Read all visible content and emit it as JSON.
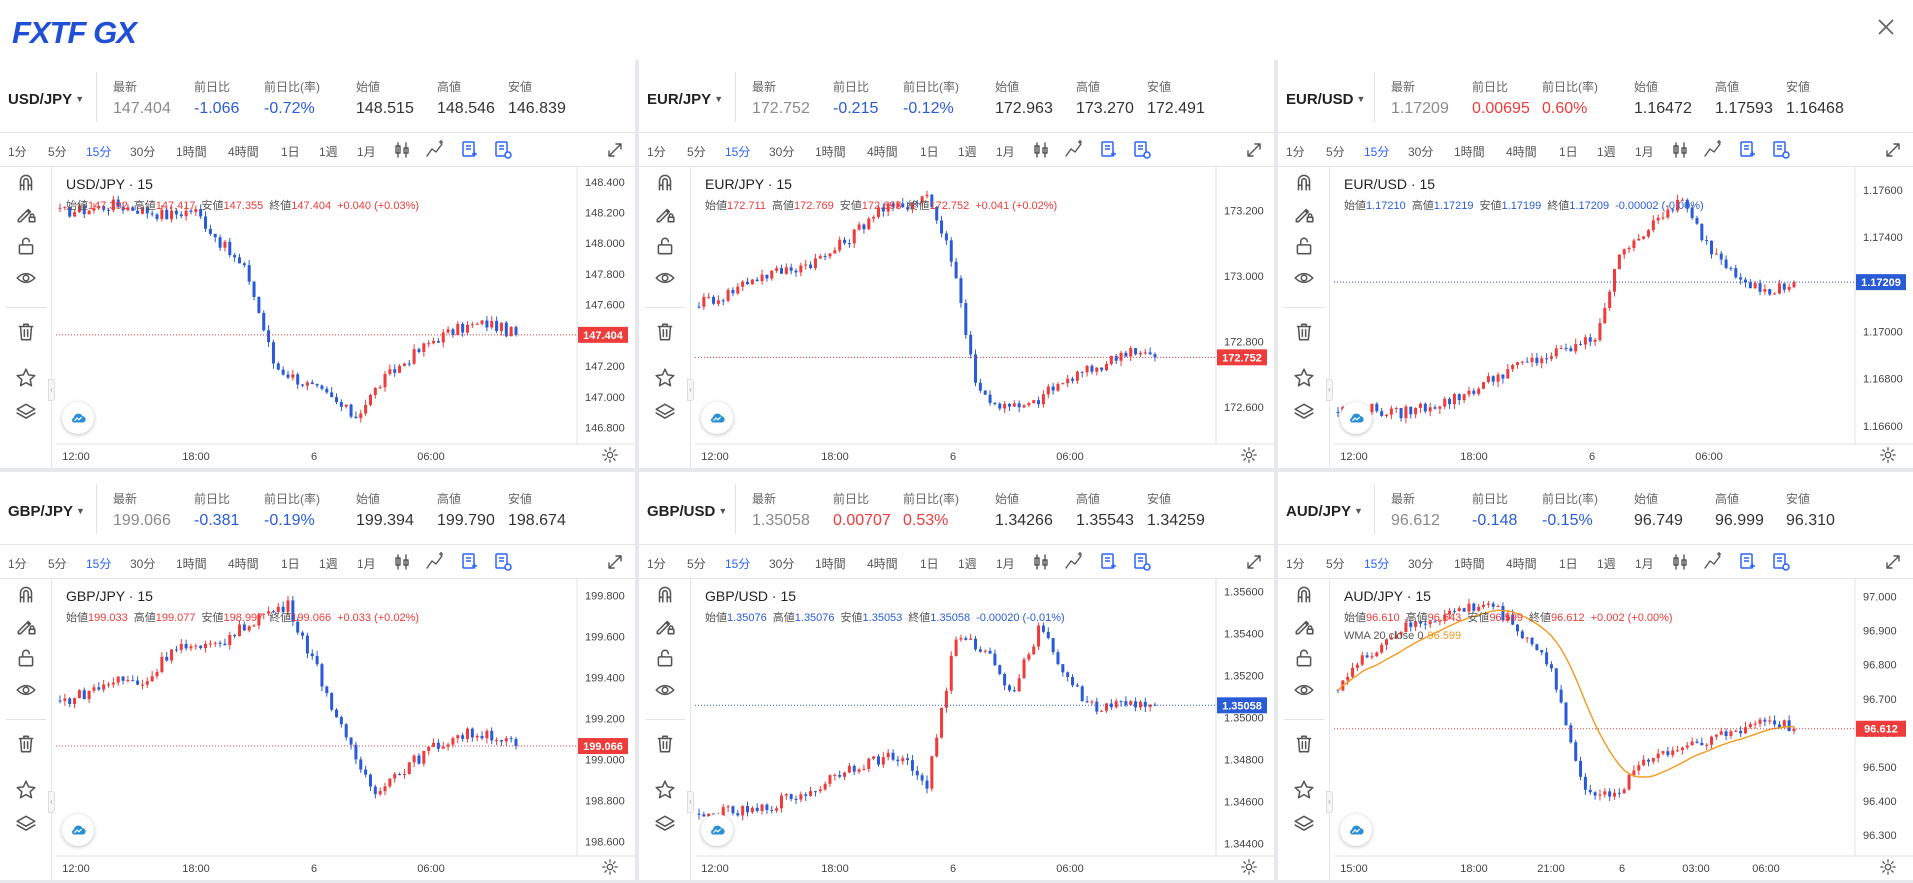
{
  "brand": {
    "logo_text": "FXTF GX",
    "logo_color": "#1f4fd6"
  },
  "icons": {
    "close": "close-icon",
    "expand": "expand-icon",
    "magnet": "magnet-icon",
    "draw": "pencil-lock-icon",
    "lock": "unlock-icon",
    "eye": "eye-icon",
    "trash": "trash-icon",
    "star": "star-icon",
    "layers": "layers-icon",
    "cloud": "cloud-icon",
    "gear": "gear-icon",
    "candle": "candlestick-icon",
    "indicator": "indicator-icon",
    "template": "template-icon"
  },
  "colors": {
    "up": "#ee3b3b",
    "down": "#2a5bd7",
    "accent": "#2962ff",
    "wma": "#f29a1e"
  },
  "labels": {
    "last": "最新",
    "chg": "前日比",
    "chg_pct": "前日比(率)",
    "open": "始値",
    "high": "高値",
    "low": "安値",
    "close": "終値",
    "interval": "· 15"
  },
  "timeframes": [
    "1分",
    "5分",
    "15分",
    "30分",
    "1時間",
    "4時間",
    "1日",
    "1週",
    "1月"
  ],
  "active_timeframe": "15分",
  "panels": [
    {
      "symbol": "USD/JPY",
      "chart_label": "USD/JPY · 15",
      "quote": {
        "last": "147.404",
        "chg": "-1.066",
        "chg_pct": "-0.72%",
        "open": "148.515",
        "high": "148.546",
        "low": "146.839",
        "dir": "down"
      },
      "ohlc": {
        "o": "147.392",
        "h": "147.417",
        "l": "147.355",
        "c": "147.404",
        "change": "+0.040 (+0.03%)",
        "dir": "up"
      },
      "price_tag": "147.404",
      "tag_dir": "up",
      "price_axis": [
        "148.400",
        "148.200",
        "148.000",
        "147.800",
        "147.600",
        "147.400",
        "147.200",
        "147.000",
        "146.800"
      ],
      "time_axis": [
        "12:00",
        "18:00",
        "6",
        "06:00"
      ]
    },
    {
      "symbol": "EUR/JPY",
      "chart_label": "EUR/JPY · 15",
      "quote": {
        "last": "172.752",
        "chg": "-0.215",
        "chg_pct": "-0.12%",
        "open": "172.963",
        "high": "173.270",
        "low": "172.491",
        "dir": "down"
      },
      "ohlc": {
        "o": "172.711",
        "h": "172.769",
        "l": "172.693",
        "c": "172.752",
        "change": "+0.041 (+0.02%)",
        "dir": "up"
      },
      "price_tag": "172.752",
      "tag_dir": "up",
      "price_axis": [
        "173.200",
        "173.000",
        "172.800",
        "172.600"
      ],
      "time_axis": [
        "12:00",
        "18:00",
        "6",
        "06:00"
      ]
    },
    {
      "symbol": "EUR/USD",
      "chart_label": "EUR/USD · 15",
      "quote": {
        "last": "1.17209",
        "chg": "0.00695",
        "chg_pct": "0.60%",
        "open": "1.16472",
        "high": "1.17593",
        "low": "1.16468",
        "dir": "up"
      },
      "ohlc": {
        "o": "1.17210",
        "h": "1.17219",
        "l": "1.17199",
        "c": "1.17209",
        "change": "-0.00002 (-0.00%)",
        "dir": "down"
      },
      "price_tag": "1.17209",
      "tag_dir": "down",
      "price_axis": [
        "1.17600",
        "1.17400",
        "1.17200",
        "1.17000",
        "1.16800",
        "1.16600"
      ],
      "time_axis": [
        "12:00",
        "18:00",
        "6",
        "06:00"
      ]
    },
    {
      "symbol": "GBP/JPY",
      "chart_label": "GBP/JPY · 15",
      "quote": {
        "last": "199.066",
        "chg": "-0.381",
        "chg_pct": "-0.19%",
        "open": "199.394",
        "high": "199.790",
        "low": "198.674",
        "dir": "down"
      },
      "ohlc": {
        "o": "199.033",
        "h": "199.077",
        "l": "198.997",
        "c": "199.066",
        "change": "+0.033 (+0.02%)",
        "dir": "up"
      },
      "price_tag": "199.066",
      "tag_dir": "up",
      "price_axis": [
        "199.800",
        "199.600",
        "199.400",
        "199.200",
        "199.000",
        "198.800",
        "198.600"
      ],
      "time_axis": [
        "12:00",
        "18:00",
        "6",
        "06:00"
      ]
    },
    {
      "symbol": "GBP/USD",
      "chart_label": "GBP/USD · 15",
      "quote": {
        "last": "1.35058",
        "chg": "0.00707",
        "chg_pct": "0.53%",
        "open": "1.34266",
        "high": "1.35543",
        "low": "1.34259",
        "dir": "up"
      },
      "ohlc": {
        "o": "1.35076",
        "h": "1.35076",
        "l": "1.35053",
        "c": "1.35058",
        "change": "-0.00020 (-0.01%)",
        "dir": "down"
      },
      "price_tag": "1.35058",
      "tag_dir": "down",
      "price_axis": [
        "1.35600",
        "1.35400",
        "1.35200",
        "1.35000",
        "1.34800",
        "1.34600",
        "1.34400"
      ],
      "time_axis": [
        "12:00",
        "18:00",
        "6",
        "06:00"
      ]
    },
    {
      "symbol": "AUD/JPY",
      "chart_label": "AUD/JPY · 15",
      "quote": {
        "last": "96.612",
        "chg": "-0.148",
        "chg_pct": "-0.15%",
        "open": "96.749",
        "high": "96.999",
        "low": "96.310",
        "dir": "down"
      },
      "ohlc": {
        "o": "96.610",
        "h": "96.643",
        "l": "96.599",
        "c": "96.612",
        "change": "+0.002 (+0.00%)",
        "dir": "up"
      },
      "wma_label": "WMA 20 close 0",
      "wma_value": "96.599",
      "price_tag": "96.612",
      "tag_dir": "up",
      "price_axis": [
        "97.000",
        "96.900",
        "96.800",
        "96.700",
        "96.600",
        "96.500",
        "96.400",
        "96.300"
      ],
      "time_axis": [
        "15:00",
        "18:00",
        "21:00",
        "6",
        "03:00",
        "06:00"
      ]
    }
  ],
  "chart_data": [
    {
      "type": "candlestick",
      "title": "USD/JPY · 15",
      "ylim": [
        146.72,
        148.47
      ],
      "current": 147.404,
      "y_ticks": [
        148.4,
        148.2,
        148.0,
        147.8,
        147.6,
        147.4,
        147.2,
        147.0,
        146.8
      ],
      "x_ticks": [
        "12:00",
        "18:00",
        "6",
        "06:00"
      ],
      "anchors": [
        148.2,
        148.22,
        148.25,
        148.22,
        148.18,
        148.22,
        148.0,
        147.8,
        147.2,
        147.1,
        147.0,
        146.87,
        147.1,
        147.25,
        147.38,
        147.45,
        147.48,
        147.404
      ],
      "candles": 95
    },
    {
      "type": "candlestick",
      "title": "EUR/JPY · 15",
      "ylim": [
        172.5,
        173.32
      ],
      "current": 172.752,
      "y_ticks": [
        173.2,
        173.0,
        172.8,
        172.6
      ],
      "x_ticks": [
        "12:00",
        "18:00",
        "6",
        "06:00"
      ],
      "anchors": [
        172.92,
        172.94,
        172.99,
        173.01,
        173.03,
        173.06,
        173.12,
        173.2,
        173.21,
        173.25,
        173.05,
        172.65,
        172.6,
        172.6,
        172.66,
        172.7,
        172.73,
        172.78,
        172.752
      ],
      "candles": 95
    },
    {
      "type": "candlestick",
      "title": "EUR/USD · 15",
      "ylim": [
        1.1654,
        1.1768
      ],
      "current": 1.17209,
      "y_ticks": [
        1.176,
        1.174,
        1.172,
        1.17,
        1.168,
        1.166
      ],
      "x_ticks": [
        "12:00",
        "18:00",
        "6",
        "06:00"
      ],
      "anchors": [
        1.16665,
        1.16675,
        1.1665,
        1.1668,
        1.1671,
        1.1677,
        1.1684,
        1.1688,
        1.1692,
        1.1697,
        1.1736,
        1.1744,
        1.1756,
        1.1736,
        1.1725,
        1.1716,
        1.17209
      ],
      "candles": 95
    },
    {
      "type": "candlestick",
      "title": "GBP/JPY · 15",
      "ylim": [
        198.55,
        199.86
      ],
      "current": 199.066,
      "y_ticks": [
        199.8,
        199.6,
        199.4,
        199.2,
        199.0,
        198.8,
        198.6
      ],
      "x_ticks": [
        "12:00",
        "18:00",
        "6",
        "06:00"
      ],
      "anchors": [
        199.28,
        199.33,
        199.39,
        199.37,
        199.56,
        199.53,
        199.6,
        199.7,
        199.75,
        199.45,
        199.1,
        198.85,
        198.95,
        199.05,
        199.12,
        199.13,
        199.066
      ],
      "candles": 95
    },
    {
      "type": "candlestick",
      "title": "GBP/USD · 15",
      "ylim": [
        1.3436,
        1.3564
      ],
      "current": 1.35058,
      "y_ticks": [
        1.356,
        1.354,
        1.352,
        1.35,
        1.348,
        1.346,
        1.344
      ],
      "x_ticks": [
        "12:00",
        "18:00",
        "6",
        "06:00"
      ],
      "anchors": [
        1.3452,
        1.3455,
        1.3455,
        1.3461,
        1.3465,
        1.3475,
        1.3479,
        1.3482,
        1.3468,
        1.3537,
        1.3533,
        1.3512,
        1.3545,
        1.3515,
        1.3505,
        1.3506,
        1.35058
      ],
      "candles": 95
    },
    {
      "type": "candlestick",
      "title": "AUD/JPY · 15",
      "ylim": [
        96.25,
        97.04
      ],
      "current": 96.612,
      "y_ticks": [
        97.0,
        96.9,
        96.8,
        96.7,
        96.6,
        96.5,
        96.4,
        96.3
      ],
      "x_ticks": [
        "15:00",
        "18:00",
        "21:00",
        "6",
        "03:00",
        "06:00"
      ],
      "anchors": [
        96.74,
        96.83,
        96.9,
        96.93,
        96.96,
        96.98,
        96.9,
        96.8,
        96.45,
        96.4,
        96.52,
        96.55,
        96.58,
        96.6,
        96.64,
        96.612
      ],
      "candles": 95,
      "overlay": {
        "name": "WMA 20 close 0",
        "value": 96.599
      }
    }
  ]
}
